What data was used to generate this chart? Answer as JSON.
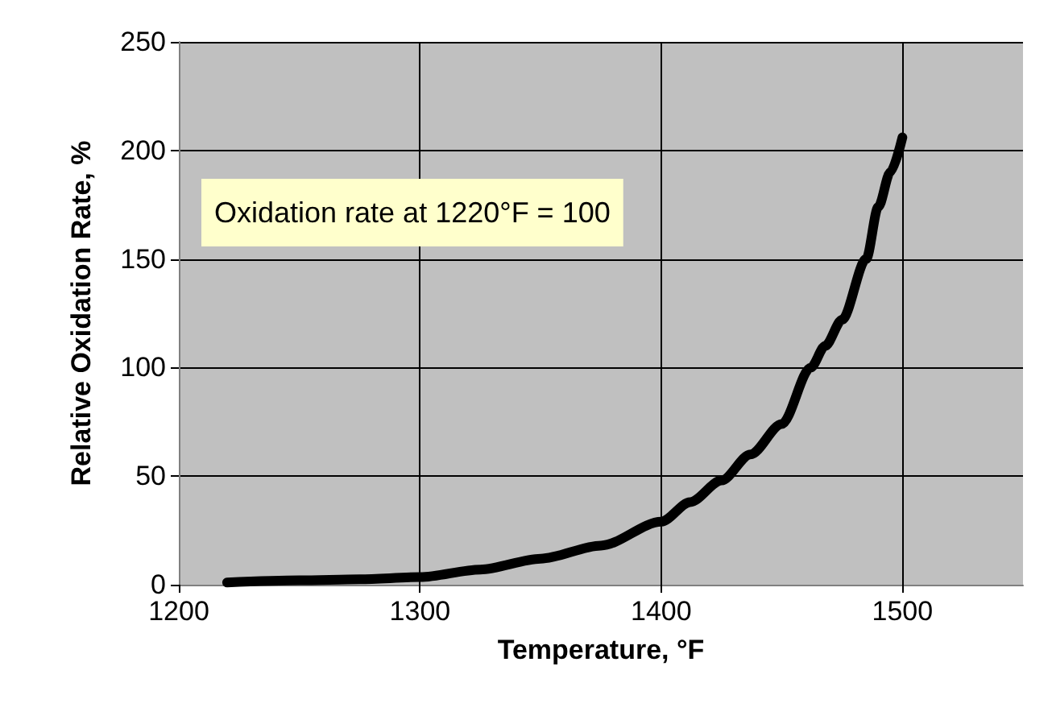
{
  "chart_data": {
    "type": "line",
    "xlabel": "Temperature, °F",
    "ylabel": "Relative Oxidation Rate, %",
    "annotations": [
      "Oxidation rate at 1220°F = 100"
    ],
    "x": [
      1220,
      1250,
      1275,
      1300,
      1325,
      1350,
      1375,
      1400,
      1412,
      1425,
      1437,
      1450,
      1462,
      1468,
      1475,
      1485,
      1490,
      1495,
      1500
    ],
    "series": [
      {
        "color": "#000000",
        "values": [
          1,
          2,
          2.5,
          3.5,
          7,
          12,
          18,
          29,
          38,
          48,
          60,
          74,
          100,
          110,
          122,
          150,
          174,
          190,
          206
        ]
      }
    ],
    "xlim": [
      1200,
      1550
    ],
    "xticks": [
      1200,
      1300,
      1400,
      1500
    ],
    "ylim": [
      0,
      250
    ],
    "yticks": [
      0,
      50,
      100,
      150,
      200,
      250
    ],
    "grid": true,
    "marker": "none",
    "line_style": "solid"
  }
}
